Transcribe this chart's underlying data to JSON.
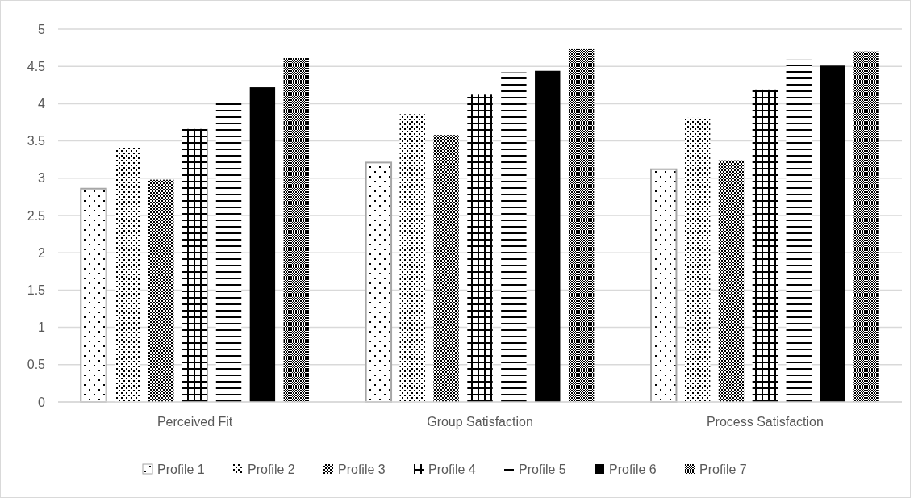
{
  "chart_data": {
    "type": "bar",
    "categories": [
      "Perceived Fit",
      "Group Satisfaction",
      "Process Satisfaction"
    ],
    "series": [
      {
        "name": "Profile 1",
        "color": "#a6a6a6",
        "values": [
          2.86,
          3.21,
          3.12
        ]
      },
      {
        "name": "Profile 2",
        "color": "#000000",
        "values": [
          3.42,
          3.86,
          3.81
        ]
      },
      {
        "name": "Profile 3",
        "color": "#000000",
        "values": [
          2.98,
          3.58,
          3.24
        ]
      },
      {
        "name": "Profile 4",
        "color": "#000000",
        "values": [
          3.66,
          4.12,
          4.19
        ]
      },
      {
        "name": "Profile 5",
        "color": "#000000",
        "values": [
          4.07,
          4.42,
          4.59
        ]
      },
      {
        "name": "Profile 6",
        "color": "#000000",
        "values": [
          4.22,
          4.44,
          4.51
        ]
      },
      {
        "name": "Profile 7",
        "color": "#000000",
        "values": [
          4.61,
          4.73,
          4.7
        ]
      }
    ],
    "ylim": [
      0,
      5
    ],
    "yticks": [
      0,
      0.5,
      1,
      1.5,
      2,
      2.5,
      3,
      3.5,
      4,
      4.5,
      5
    ],
    "grid": "y",
    "legend": "bottom"
  }
}
